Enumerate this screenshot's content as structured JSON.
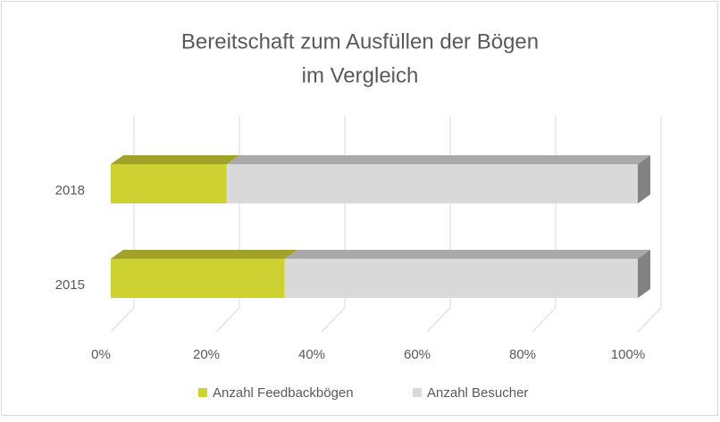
{
  "chart_data": {
    "type": "bar3d_stacked_horizontal",
    "title": [
      "Bereitschaft zum Ausfüllen der Bögen",
      "im Vergleich"
    ],
    "categories": [
      "2015",
      "2018"
    ],
    "series": [
      {
        "name": "Anzahl Feedbackbögen",
        "color": "#cdd132",
        "values": [
          33,
          22
        ]
      },
      {
        "name": "Anzahl Besucher",
        "color": "#d9d9d9",
        "values": [
          67,
          78
        ]
      }
    ],
    "xlim": [
      0,
      100
    ],
    "xticks": [
      {
        "value": 0,
        "label": "0%"
      },
      {
        "value": 20,
        "label": "20%"
      },
      {
        "value": 40,
        "label": "40%"
      },
      {
        "value": 60,
        "label": "60%"
      },
      {
        "value": 80,
        "label": "80%"
      },
      {
        "value": 100,
        "label": "100%"
      }
    ],
    "grid": true,
    "legend": "bottom"
  }
}
